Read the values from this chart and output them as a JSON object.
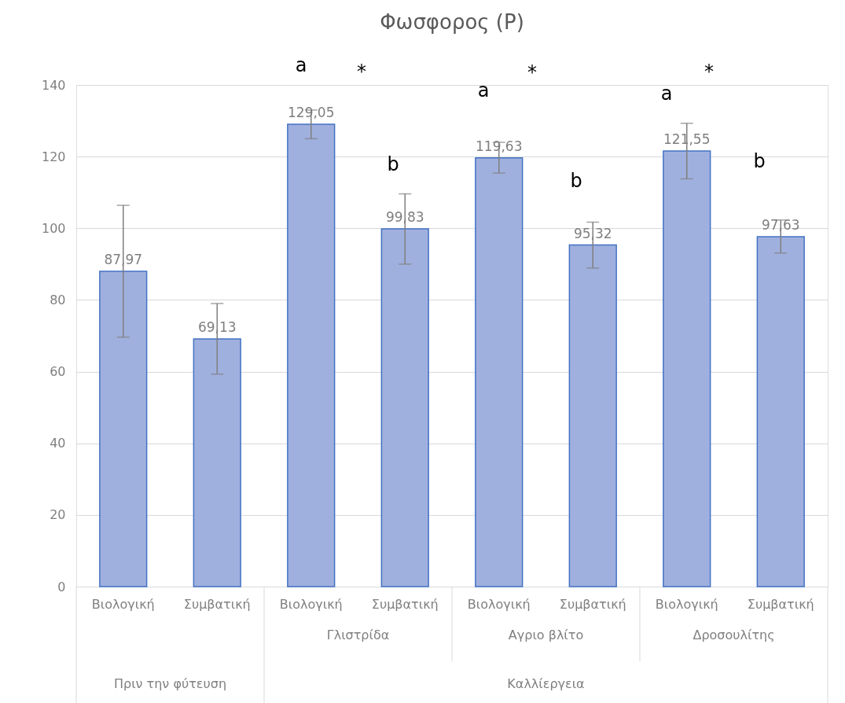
{
  "chart_data": {
    "type": "bar",
    "title": "Φωσφορος (P)",
    "categories": [
      "Βιολογική",
      "Συμβατική",
      "Βιολογική",
      "Συμβατική",
      "Βιολογική",
      "Συμβατική",
      "Βιολογική",
      "Συμβατική"
    ],
    "values": [
      87.97,
      69.13,
      129.05,
      99.83,
      119.63,
      95.32,
      121.55,
      97.63
    ],
    "value_labels": [
      "87,97",
      "69,13",
      "129,05",
      "99,83",
      "119,63",
      "95,32",
      "121,55",
      "97,63"
    ],
    "errors": [
      [
        69.6,
        106.4
      ],
      [
        59.3,
        79.0
      ],
      [
        125.0,
        133.0
      ],
      [
        90.0,
        109.6
      ],
      [
        115.4,
        124.0
      ],
      [
        88.9,
        101.7
      ],
      [
        113.8,
        129.3
      ],
      [
        93.1,
        102.3
      ]
    ],
    "color": "#a0b0de",
    "ylim": [
      0,
      140
    ],
    "yticks": [
      0,
      20,
      40,
      60,
      80,
      100,
      120,
      140
    ],
    "grid": "y",
    "annotations": [
      "a",
      "*",
      "b",
      "a",
      "*",
      "b",
      "a",
      "*",
      "b",
      "Γλιστρίδα",
      "Αγριο βλίτο",
      "Δροσουλίτης",
      "Πριν την φύτευση",
      "Καλλίεργεια"
    ]
  }
}
